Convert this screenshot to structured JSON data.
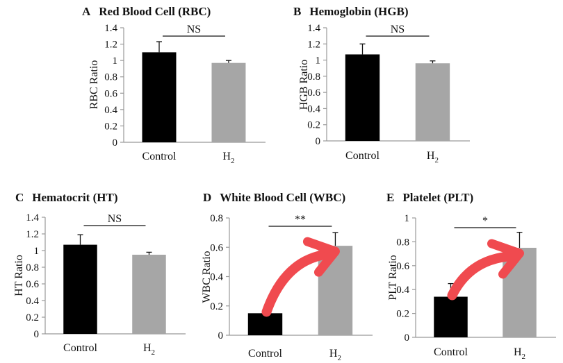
{
  "chart_data": [
    {
      "type": "bar",
      "letter": "A",
      "title": "Red Blood Cell (RBC)",
      "ylabel": "RBC Ratio",
      "categories": [
        "Control",
        "H"
      ],
      "values": [
        1.1,
        0.97
      ],
      "errors": [
        0.13,
        0.03
      ],
      "colors": [
        "#000000",
        "#a6a6a6"
      ],
      "ylim": [
        0,
        1.4
      ],
      "ticks": [
        "0",
        "0.2",
        "0.4",
        "0.6",
        "0.8",
        "1",
        "1.2",
        "1.4"
      ],
      "significance": "NS",
      "highlight_arrow": false
    },
    {
      "type": "bar",
      "letter": "B",
      "title": "Hemoglobin (HGB)",
      "ylabel": "HGB Ratio",
      "categories": [
        "Control",
        "H"
      ],
      "values": [
        1.07,
        0.96
      ],
      "errors": [
        0.13,
        0.03
      ],
      "colors": [
        "#000000",
        "#a6a6a6"
      ],
      "ylim": [
        0,
        1.4
      ],
      "ticks": [
        "0",
        "0.2",
        "0.4",
        "0.6",
        "0.8",
        "1",
        "1.2",
        "1.4"
      ],
      "significance": "NS",
      "highlight_arrow": false
    },
    {
      "type": "bar",
      "letter": "C",
      "title": "Hematocrit (HT)",
      "ylabel": "HT Ratio",
      "categories": [
        "Control",
        "H"
      ],
      "values": [
        1.07,
        0.95
      ],
      "errors": [
        0.12,
        0.03
      ],
      "colors": [
        "#000000",
        "#a6a6a6"
      ],
      "ylim": [
        0,
        1.4
      ],
      "ticks": [
        "0",
        "0.2",
        "0.4",
        "0.6",
        "0.8",
        "1",
        "1.2",
        "1.4"
      ],
      "significance": "NS",
      "highlight_arrow": false
    },
    {
      "type": "bar",
      "letter": "D",
      "title": "White Blood Cell (WBC)",
      "ylabel": "WBC Ratio",
      "categories": [
        "Control",
        "H"
      ],
      "values": [
        0.15,
        0.61
      ],
      "errors": [
        0.0,
        0.09
      ],
      "colors": [
        "#000000",
        "#a6a6a6"
      ],
      "ylim": [
        0,
        0.8
      ],
      "ticks": [
        "0",
        "0.2",
        "0.4",
        "0.6",
        "0.8"
      ],
      "significance": "**",
      "highlight_arrow": true
    },
    {
      "type": "bar",
      "letter": "E",
      "title": "Platelet (PLT)",
      "ylabel": "PLT Ratio",
      "categories": [
        "Control",
        "H"
      ],
      "values": [
        0.34,
        0.75
      ],
      "errors": [
        0.11,
        0.13
      ],
      "colors": [
        "#000000",
        "#a6a6a6"
      ],
      "ylim": [
        0,
        1
      ],
      "ticks": [
        "0",
        "0.2",
        "0.4",
        "0.6",
        "0.8",
        "1"
      ],
      "significance": "*",
      "highlight_arrow": true
    }
  ],
  "subscript_text": "2",
  "arrow_color": "#f04a4f"
}
